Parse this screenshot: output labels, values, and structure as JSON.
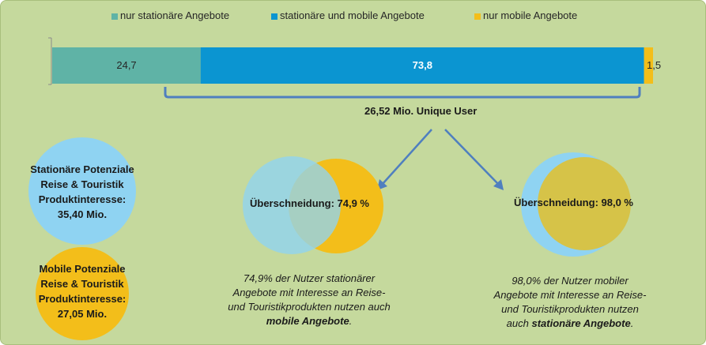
{
  "chart_data": {
    "type": "bar",
    "orientation": "horizontal-stacked",
    "series": [
      {
        "name": "nur stationäre Angebote",
        "value": 24.7,
        "label": "24,7",
        "color": "#5fb3a6"
      },
      {
        "name": "stationäre und mobile Angebote",
        "value": 73.8,
        "label": "73,8",
        "color": "#0b95d1"
      },
      {
        "name": "nur mobile Angebote",
        "value": 1.5,
        "label": "1,5",
        "color": "#f3be1a"
      }
    ],
    "total": 100,
    "legend_position": "top"
  },
  "bracket_label": "26,52 Mio. Unique User",
  "circles": {
    "stationary": {
      "lines": [
        "Stationäre Potenziale",
        "Reise & Touristik",
        "Produktinteresse:",
        "35,40 Mio."
      ],
      "color": "#8fd3f2"
    },
    "mobile": {
      "lines": [
        "Mobile Potenziale",
        "Reise & Touristik",
        "Produktinteresse:",
        "27,05 Mio."
      ],
      "color": "#f3be1a"
    }
  },
  "venn_left": {
    "overlap_label": "Überschneidung: 74,9 %",
    "caption_lines": [
      "74,9% der Nutzer stationärer",
      "Angebote mit Interesse an Reise-",
      "und Touristikprodukten nutzen auch"
    ],
    "caption_bold": "mobile Angebote",
    "caption_end": "."
  },
  "venn_right": {
    "overlap_label": "Überschneidung: 98,0 %",
    "caption_lines": [
      "98,0% der Nutzer mobiler",
      "Angebote mit Interesse an Reise-",
      "und Touristikprodukten nutzen"
    ],
    "caption_prefix": "auch ",
    "caption_bold": "stationäre Angebote",
    "caption_end": "."
  }
}
